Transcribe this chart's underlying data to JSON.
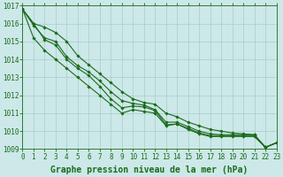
{
  "x": [
    0,
    1,
    2,
    3,
    4,
    5,
    6,
    7,
    8,
    9,
    10,
    11,
    12,
    13,
    14,
    15,
    16,
    17,
    18,
    19,
    20,
    21,
    22,
    23
  ],
  "line1": [
    1016.8,
    1016.0,
    1015.8,
    1015.5,
    1015.0,
    1014.2,
    1013.7,
    1013.2,
    1012.7,
    1012.2,
    1011.8,
    1011.6,
    1011.5,
    1011.0,
    1010.8,
    1010.5,
    1010.3,
    1010.1,
    1010.0,
    1009.9,
    1009.85,
    1009.8,
    1009.1,
    1009.35
  ],
  "line2": [
    1016.8,
    1015.9,
    1015.2,
    1015.0,
    1014.15,
    1013.65,
    1013.3,
    1012.8,
    1012.2,
    1011.7,
    1011.55,
    1011.45,
    1011.2,
    1010.5,
    1010.5,
    1010.25,
    1010.0,
    1009.85,
    1009.8,
    1009.8,
    1009.8,
    1009.8,
    1009.1,
    1009.35
  ],
  "line3": [
    1016.8,
    1016.0,
    1015.1,
    1014.8,
    1014.0,
    1013.5,
    1013.1,
    1012.5,
    1011.8,
    1011.3,
    1011.4,
    1011.35,
    1011.15,
    1010.35,
    1010.4,
    1010.15,
    1009.9,
    1009.75,
    1009.75,
    1009.75,
    1009.75,
    1009.75,
    1009.1,
    1009.35
  ],
  "line4": [
    1016.8,
    1015.2,
    1014.5,
    1014.0,
    1013.5,
    1013.0,
    1012.5,
    1012.0,
    1011.5,
    1011.0,
    1011.2,
    1011.1,
    1011.0,
    1010.3,
    1010.4,
    1010.1,
    1009.85,
    1009.7,
    1009.7,
    1009.7,
    1009.7,
    1009.7,
    1009.1,
    1009.35
  ],
  "line_color": "#1a6b1a",
  "bg_color": "#cce8e8",
  "grid_color": "#aacccc",
  "xlabel": "Graphe pression niveau de la mer (hPa)",
  "ylim": [
    1009,
    1017
  ],
  "xlim": [
    0,
    23
  ],
  "yticks": [
    1009,
    1010,
    1011,
    1012,
    1013,
    1014,
    1015,
    1016,
    1017
  ],
  "xticks": [
    0,
    1,
    2,
    3,
    4,
    5,
    6,
    7,
    8,
    9,
    10,
    11,
    12,
    13,
    14,
    15,
    16,
    17,
    18,
    19,
    20,
    21,
    22,
    23
  ],
  "marker": "D",
  "markersize": 1.8,
  "linewidth": 0.8,
  "xlabel_fontsize": 7,
  "tick_fontsize": 5.5,
  "fig_width": 3.2,
  "fig_height": 2.0,
  "dpi": 100
}
